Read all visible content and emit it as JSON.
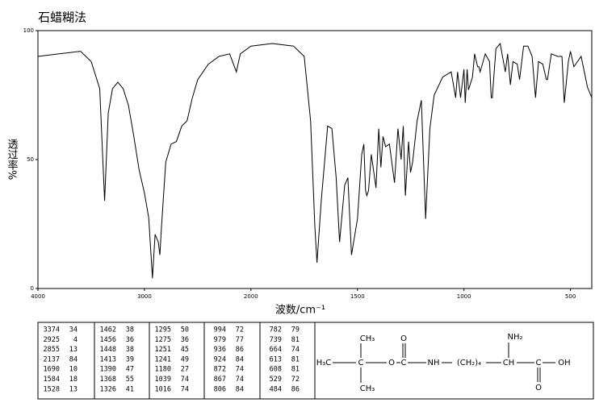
{
  "chart_data": {
    "type": "line",
    "title": "石蜡糊法",
    "xlabel": "波数/cm⁻¹",
    "ylabel": "透过率%",
    "color": "#000000",
    "xlim": [
      4000,
      400
    ],
    "x_scale_break": 2000,
    "x_scale_ratio": 2,
    "xticks": [
      4000,
      3000,
      2000,
      1500,
      1000,
      500
    ],
    "ylim": [
      0,
      100
    ],
    "yticks": [
      0,
      50,
      100
    ],
    "x": [
      4000,
      3800,
      3600,
      3500,
      3420,
      3374,
      3340,
      3300,
      3250,
      3200,
      3150,
      3100,
      3050,
      3000,
      2960,
      2925,
      2900,
      2870,
      2855,
      2840,
      2800,
      2750,
      2700,
      2650,
      2600,
      2550,
      2500,
      2400,
      2300,
      2200,
      2137,
      2100,
      2000,
      1900,
      1800,
      1750,
      1720,
      1700,
      1690,
      1670,
      1640,
      1620,
      1600,
      1584,
      1560,
      1545,
      1528,
      1500,
      1480,
      1470,
      1462,
      1456,
      1448,
      1435,
      1413,
      1400,
      1390,
      1380,
      1368,
      1350,
      1326,
      1310,
      1295,
      1285,
      1275,
      1260,
      1251,
      1241,
      1220,
      1200,
      1180,
      1160,
      1140,
      1100,
      1060,
      1039,
      1030,
      1016,
      1000,
      994,
      985,
      979,
      960,
      950,
      936,
      930,
      924,
      900,
      880,
      872,
      867,
      850,
      830,
      806,
      795,
      782,
      770,
      750,
      739,
      720,
      700,
      680,
      664,
      650,
      630,
      613,
      608,
      590,
      560,
      540,
      529,
      510,
      500,
      484,
      450,
      420,
      400
    ],
    "values": [
      90,
      91,
      92,
      88,
      77.5,
      34,
      68,
      77.5,
      80,
      77.5,
      71,
      59,
      46,
      37,
      27.5,
      4,
      21,
      18,
      13,
      24,
      49,
      56,
      57,
      63,
      65,
      74,
      81,
      87,
      90,
      91,
      84,
      91,
      94,
      95,
      94,
      90,
      65,
      24,
      10,
      34,
      63,
      62,
      43,
      18,
      40,
      43,
      13,
      27,
      52,
      56,
      38,
      36,
      38,
      52,
      39,
      62,
      47,
      59,
      55,
      56,
      41,
      62,
      50,
      63,
      36,
      57,
      45,
      49,
      65,
      73,
      27,
      62,
      75,
      82,
      84,
      74,
      84,
      74,
      85,
      72,
      85,
      77,
      82,
      91,
      86,
      86,
      84,
      91,
      88,
      74,
      74,
      93,
      95,
      84,
      91,
      79,
      88,
      87,
      81,
      94,
      94,
      90,
      74,
      88,
      87,
      81,
      81,
      91,
      90,
      90,
      72,
      88,
      92,
      86,
      90,
      78,
      74
    ]
  },
  "peak_table": {
    "columns": [
      [
        [
          3374,
          34
        ],
        [
          2925,
          4
        ],
        [
          2855,
          13
        ],
        [
          2137,
          84
        ],
        [
          1690,
          10
        ],
        [
          1584,
          18
        ],
        [
          1528,
          13
        ]
      ],
      [
        [
          1462,
          38
        ],
        [
          1456,
          36
        ],
        [
          1448,
          38
        ],
        [
          1413,
          39
        ],
        [
          1390,
          47
        ],
        [
          1368,
          55
        ],
        [
          1326,
          41
        ]
      ],
      [
        [
          1295,
          50
        ],
        [
          1275,
          36
        ],
        [
          1251,
          45
        ],
        [
          1241,
          49
        ],
        [
          1180,
          27
        ],
        [
          1039,
          74
        ],
        [
          1016,
          74
        ]
      ],
      [
        [
          994,
          72
        ],
        [
          979,
          77
        ],
        [
          936,
          86
        ],
        [
          924,
          84
        ],
        [
          872,
          74
        ],
        [
          867,
          74
        ],
        [
          806,
          84
        ]
      ],
      [
        [
          782,
          79
        ],
        [
          739,
          81
        ],
        [
          664,
          74
        ],
        [
          613,
          81
        ],
        [
          608,
          81
        ],
        [
          529,
          72
        ],
        [
          484,
          86
        ]
      ]
    ]
  },
  "structure": {
    "atoms": [
      "CH₃",
      "H₃C",
      "C",
      "O",
      "C",
      "O",
      "NH",
      "(CH₂)₄",
      "CH",
      "NH₂",
      "C",
      "OH",
      "O",
      "CH₃"
    ]
  }
}
